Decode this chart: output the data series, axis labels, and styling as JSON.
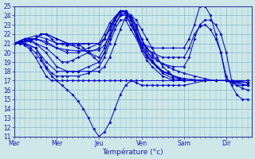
{
  "xlabel": "Température (°c)",
  "background_color": "#cce8e8",
  "grid_color": "#8ab8c8",
  "line_color": "#0000cc",
  "ylim": [
    11,
    25
  ],
  "xlim": [
    0,
    5.6
  ],
  "day_labels": [
    "Mar",
    "Mer",
    "Jeu",
    "Ven",
    "Sam",
    "Dir"
  ],
  "day_positions": [
    0,
    1,
    2,
    3,
    4,
    5
  ],
  "series": [
    [
      0.0,
      21.0,
      0.125,
      21.0,
      0.25,
      21.0,
      0.375,
      20.5,
      0.5,
      20.0,
      0.625,
      19.2,
      0.75,
      18.3,
      0.875,
      17.5,
      1.0,
      17.0,
      1.125,
      16.5,
      1.25,
      16.0,
      1.375,
      15.5,
      1.5,
      14.8,
      1.625,
      14.0,
      1.75,
      13.0,
      1.875,
      11.8,
      2.0,
      11.0,
      2.125,
      11.5,
      2.25,
      12.5,
      2.375,
      14.0,
      2.5,
      15.5,
      2.625,
      16.5,
      2.75,
      17.0,
      2.875,
      16.8,
      3.0,
      16.5,
      3.125,
      16.5,
      3.25,
      16.5,
      3.375,
      16.5,
      3.5,
      16.5,
      3.625,
      16.5,
      3.75,
      16.5,
      3.875,
      16.5,
      4.0,
      16.5,
      4.5,
      17.0,
      5.0,
      17.0,
      5.5,
      16.5
    ],
    [
      0.0,
      21.0,
      0.125,
      21.0,
      0.25,
      20.8,
      0.375,
      20.3,
      0.5,
      19.5,
      0.625,
      18.5,
      0.75,
      17.5,
      0.875,
      17.0,
      1.0,
      17.0,
      1.125,
      17.0,
      1.25,
      17.0,
      1.375,
      17.0,
      1.5,
      17.0,
      1.625,
      17.0,
      1.75,
      17.0,
      1.875,
      17.0,
      2.0,
      17.0,
      2.125,
      17.0,
      2.25,
      17.0,
      2.375,
      17.0,
      2.5,
      17.0,
      2.625,
      17.0,
      2.75,
      17.0,
      2.875,
      17.0,
      3.0,
      17.0,
      3.5,
      17.0,
      4.0,
      17.0,
      4.5,
      17.0,
      5.0,
      17.0,
      5.5,
      17.0
    ],
    [
      0.0,
      21.0,
      0.25,
      21.0,
      0.5,
      20.5,
      0.75,
      19.0,
      1.0,
      18.0,
      1.25,
      18.0,
      1.375,
      18.0,
      1.5,
      18.0,
      1.75,
      18.0,
      2.0,
      18.0,
      2.125,
      18.5,
      2.25,
      19.5,
      2.375,
      21.0,
      2.5,
      22.5,
      2.625,
      23.8,
      2.75,
      24.0,
      2.875,
      23.5,
      3.0,
      22.5,
      3.125,
      21.5,
      3.25,
      20.5,
      3.375,
      19.5,
      3.5,
      18.5,
      3.625,
      18.0,
      3.75,
      17.5,
      3.875,
      17.2,
      4.0,
      17.0,
      4.25,
      17.0,
      4.5,
      17.0,
      4.75,
      17.0,
      5.0,
      17.0,
      5.5,
      17.0
    ],
    [
      0.0,
      21.0,
      0.25,
      21.5,
      0.375,
      21.5,
      0.5,
      21.0,
      0.75,
      20.0,
      1.0,
      18.5,
      1.25,
      18.0,
      1.5,
      18.0,
      1.75,
      18.5,
      2.0,
      19.0,
      2.125,
      20.0,
      2.25,
      21.5,
      2.375,
      23.0,
      2.5,
      24.0,
      2.625,
      24.2,
      2.75,
      23.8,
      2.875,
      22.8,
      3.0,
      21.5,
      3.125,
      20.2,
      3.25,
      19.2,
      3.375,
      18.5,
      3.5,
      18.0,
      3.75,
      17.5,
      4.0,
      17.2,
      4.5,
      17.0,
      5.0,
      17.0,
      5.5,
      16.8
    ],
    [
      0.0,
      21.0,
      0.25,
      21.5,
      0.5,
      21.5,
      0.75,
      21.0,
      1.0,
      20.5,
      1.25,
      20.3,
      1.5,
      20.2,
      1.75,
      20.2,
      2.0,
      20.3,
      2.125,
      20.8,
      2.25,
      21.8,
      2.375,
      23.0,
      2.5,
      24.0,
      2.625,
      24.3,
      2.75,
      23.8,
      2.875,
      22.5,
      3.0,
      21.0,
      3.125,
      19.8,
      3.25,
      19.0,
      3.375,
      18.5,
      3.5,
      18.0,
      3.625,
      17.8,
      3.75,
      17.5,
      3.875,
      17.3,
      4.0,
      17.0,
      4.25,
      17.0,
      4.5,
      17.0,
      4.75,
      17.0,
      5.0,
      17.0,
      5.5,
      16.8
    ],
    [
      0.0,
      21.0,
      0.25,
      21.5,
      0.5,
      21.8,
      0.75,
      21.5,
      1.0,
      21.0,
      1.25,
      20.8,
      1.5,
      20.8,
      1.75,
      21.0,
      2.0,
      21.0,
      2.125,
      21.5,
      2.25,
      22.5,
      2.375,
      23.5,
      2.5,
      24.3,
      2.625,
      24.5,
      2.75,
      24.0,
      2.875,
      23.0,
      3.0,
      21.5,
      3.125,
      20.5,
      3.25,
      19.8,
      3.375,
      19.2,
      3.5,
      18.8,
      3.625,
      18.5,
      3.75,
      18.2,
      3.875,
      18.0,
      4.0,
      17.8,
      4.25,
      17.5,
      4.5,
      17.2,
      4.75,
      17.0,
      5.0,
      17.0,
      5.5,
      16.8
    ],
    [
      0.0,
      21.0,
      0.375,
      21.2,
      0.5,
      21.0,
      0.75,
      20.5,
      1.0,
      19.5,
      1.125,
      19.0,
      1.25,
      19.0,
      1.375,
      19.2,
      1.5,
      19.5,
      1.75,
      20.0,
      2.0,
      20.5,
      2.125,
      21.5,
      2.25,
      22.8,
      2.5,
      24.5,
      2.625,
      24.5,
      2.75,
      23.5,
      2.875,
      21.8,
      3.0,
      20.2,
      3.125,
      19.2,
      3.25,
      18.5,
      3.5,
      17.5,
      3.75,
      17.0,
      4.0,
      17.0,
      4.25,
      17.0,
      4.5,
      17.0,
      4.75,
      17.0,
      5.0,
      17.0,
      5.5,
      16.8
    ],
    [
      0.0,
      21.0,
      0.375,
      21.3,
      0.5,
      21.5,
      0.75,
      21.2,
      1.0,
      20.5,
      1.25,
      20.0,
      1.5,
      20.0,
      1.75,
      20.5,
      2.0,
      21.0,
      2.125,
      22.0,
      2.25,
      23.2,
      2.5,
      24.5,
      2.625,
      24.5,
      2.75,
      23.5,
      2.875,
      22.0,
      3.0,
      20.5,
      3.125,
      19.5,
      3.25,
      19.0,
      3.375,
      18.5,
      3.5,
      18.0,
      3.75,
      17.5,
      4.0,
      17.2,
      4.5,
      17.0,
      5.0,
      17.0,
      5.5,
      16.8
    ],
    [
      0.0,
      21.0,
      0.25,
      21.0,
      0.5,
      20.5,
      0.625,
      19.5,
      0.75,
      18.5,
      0.875,
      17.8,
      1.0,
      17.5,
      1.125,
      17.5,
      1.25,
      17.5,
      1.5,
      17.5,
      1.75,
      17.8,
      2.0,
      18.5,
      2.125,
      19.5,
      2.25,
      21.0,
      2.375,
      22.5,
      2.5,
      23.5,
      2.625,
      23.5,
      2.75,
      22.5,
      3.0,
      20.5,
      3.25,
      19.0,
      3.5,
      17.8,
      3.75,
      17.2,
      4.0,
      17.0,
      4.5,
      17.0,
      5.0,
      17.0,
      5.5,
      16.5
    ],
    [
      0.0,
      21.0,
      0.25,
      21.3,
      0.5,
      21.5,
      0.625,
      22.0,
      0.75,
      22.0,
      0.875,
      21.5,
      1.0,
      21.0,
      1.125,
      21.0,
      1.25,
      21.0,
      1.375,
      21.0,
      1.5,
      21.0,
      1.625,
      20.5,
      1.75,
      20.0,
      1.875,
      19.5,
      2.0,
      19.0,
      2.125,
      20.0,
      2.25,
      21.5,
      2.375,
      23.0,
      2.5,
      24.0,
      2.625,
      24.0,
      2.75,
      23.0,
      3.0,
      21.0,
      3.25,
      20.0,
      3.5,
      19.5,
      3.625,
      19.5,
      3.75,
      19.5,
      3.875,
      19.5,
      4.0,
      19.5,
      4.125,
      20.5,
      4.25,
      22.0,
      4.375,
      22.8,
      4.5,
      23.0,
      4.625,
      22.5,
      4.75,
      21.5,
      4.875,
      20.0,
      5.0,
      17.0,
      5.125,
      16.8,
      5.25,
      16.5,
      5.375,
      16.5,
      5.5,
      16.5
    ],
    [
      0.0,
      21.0,
      0.25,
      21.3,
      0.5,
      21.5,
      0.625,
      22.0,
      0.75,
      22.0,
      1.0,
      21.5,
      1.25,
      21.0,
      1.5,
      20.5,
      1.75,
      20.0,
      2.0,
      19.5,
      2.125,
      20.5,
      2.25,
      22.0,
      2.375,
      23.5,
      2.5,
      24.5,
      2.625,
      24.3,
      2.75,
      23.0,
      3.0,
      20.8,
      3.25,
      19.5,
      3.5,
      18.8,
      3.75,
      18.5,
      4.0,
      18.5,
      4.125,
      19.5,
      4.25,
      21.5,
      4.375,
      23.0,
      4.5,
      23.5,
      4.625,
      23.5,
      4.75,
      23.0,
      4.875,
      22.0,
      5.0,
      20.0,
      5.125,
      17.0,
      5.25,
      16.5,
      5.375,
      16.2,
      5.5,
      16.0
    ],
    [
      0.0,
      21.0,
      0.25,
      21.3,
      0.5,
      21.5,
      0.625,
      22.0,
      0.75,
      22.0,
      1.0,
      21.5,
      1.25,
      21.0,
      1.5,
      21.0,
      1.75,
      21.0,
      2.0,
      21.0,
      2.125,
      21.5,
      2.25,
      22.5,
      2.375,
      23.8,
      2.5,
      24.5,
      2.625,
      24.5,
      2.75,
      23.5,
      3.0,
      21.0,
      3.25,
      20.5,
      3.5,
      20.5,
      3.75,
      20.5,
      4.0,
      20.5,
      4.125,
      21.5,
      4.25,
      23.0,
      4.375,
      25.0,
      4.5,
      25.0,
      4.625,
      24.0,
      4.75,
      22.0,
      4.875,
      20.0,
      5.0,
      17.5,
      5.125,
      16.5,
      5.25,
      15.5,
      5.375,
      15.0,
      5.5,
      15.0
    ]
  ]
}
